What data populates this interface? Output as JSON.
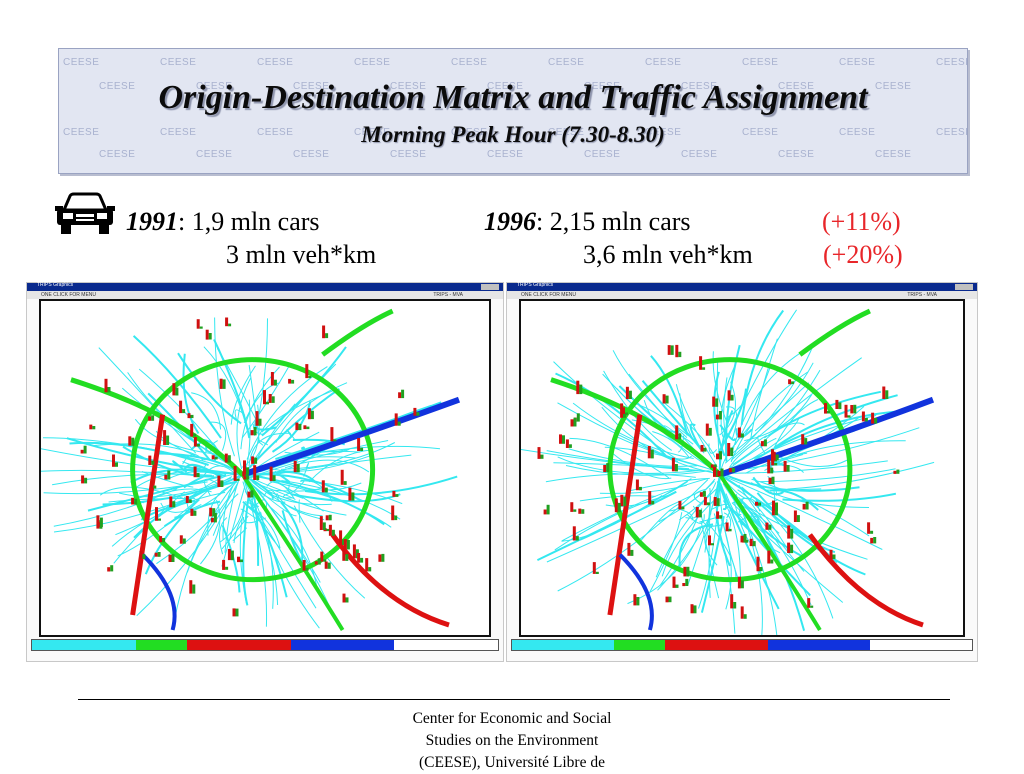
{
  "header": {
    "title": "Origin-Destination Matrix and Traffic Assignment",
    "subtitle": "Morning Peak Hour (7.30-8.30)",
    "watermark": "CEESE"
  },
  "stats": {
    "year1991": {
      "year": "1991",
      "cars": ": 1,9 mln cars",
      "vehkm": "3 mln veh*km"
    },
    "year1996": {
      "year": "1996",
      "cars": ":  2,15 mln cars",
      "vehkm": "3,6 mln veh*km",
      "cars_change": "(+11%)",
      "vehkm_change": "(+20%)"
    }
  },
  "maps": [
    {
      "window_title": "TRIPS Graphics",
      "menu_left": "ONE CLICK FOR MENU",
      "menu_right": "TRIPS - MVA"
    },
    {
      "window_title": "TRIPS Graphics",
      "menu_left": "ONE CLICK FOR MENU",
      "menu_right": "TRIPS - MVA"
    }
  ],
  "colors": {
    "network": "#34e8f0",
    "green": "#22dd22",
    "red": "#dd1111",
    "blue": "#1133dd"
  },
  "footer": {
    "line1": "Center for Economic and Social",
    "line2": "Studies on the Environment",
    "line3": "(CEESE), Université Libre de"
  },
  "icons": [
    "car-icon"
  ]
}
